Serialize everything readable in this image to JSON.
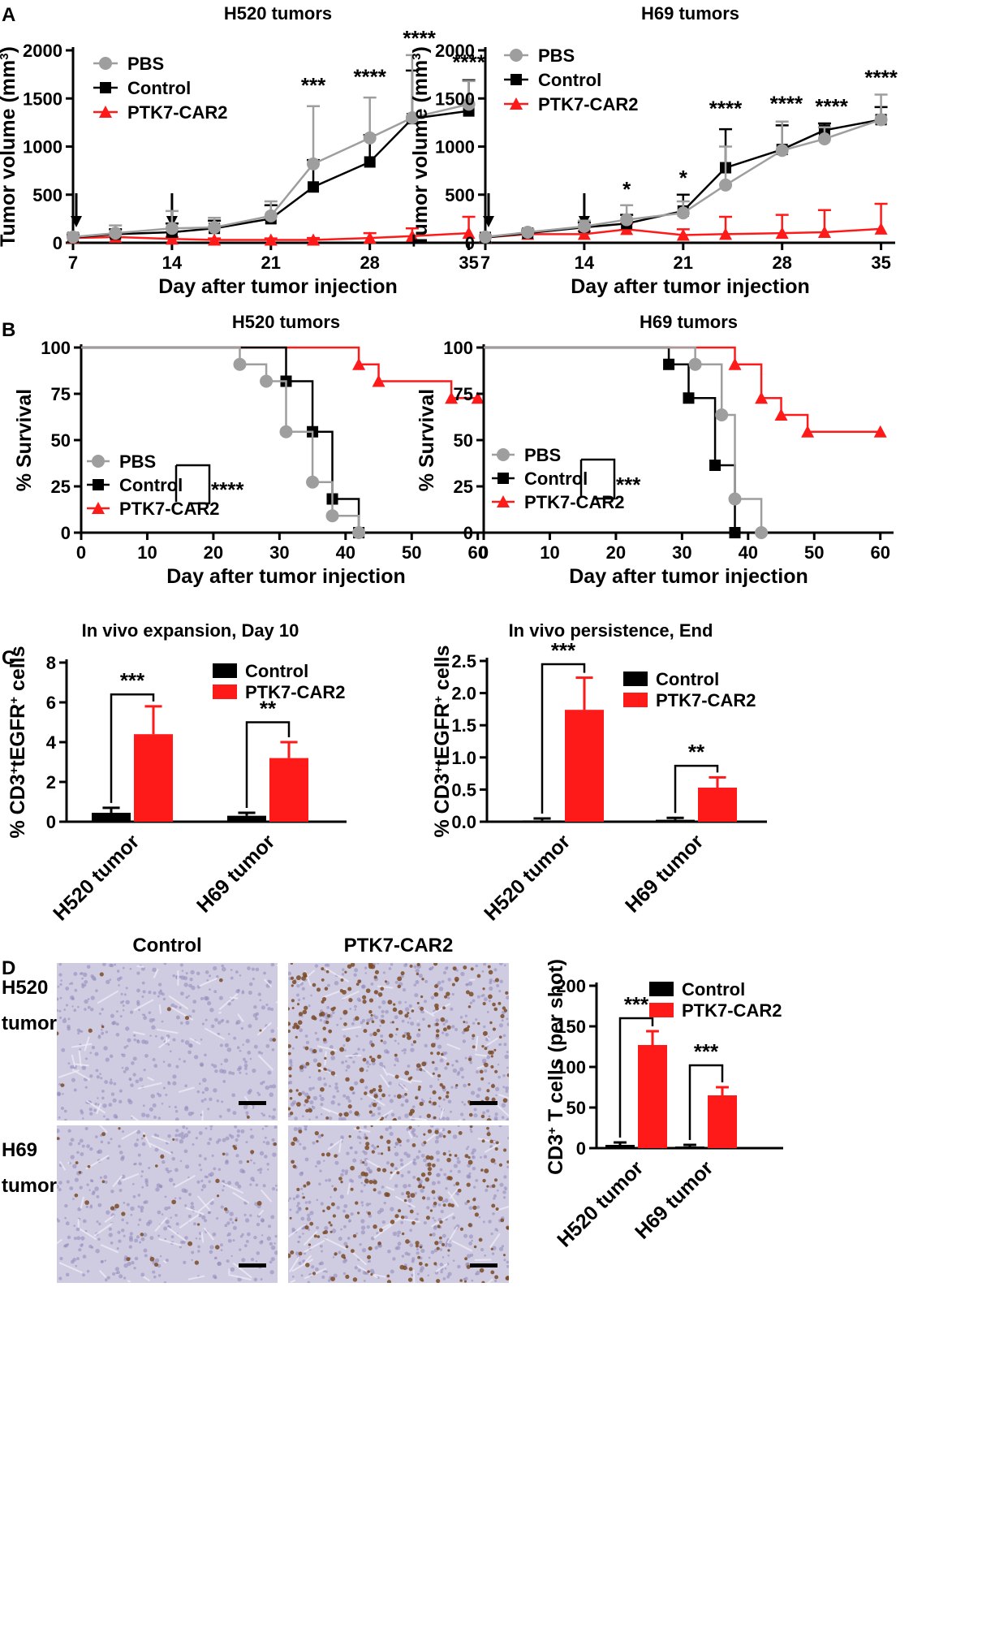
{
  "colors": {
    "pbs": "#9e9e9e",
    "control": "#000000",
    "car": "#ff1a1a",
    "ihc_bg": "#cfcce2",
    "ihc_tcell": "#7a4a26"
  },
  "panels": {
    "A": "A",
    "B": "B",
    "C": "C",
    "D": "D"
  },
  "chart_data": [
    {
      "id": "A1",
      "type": "line",
      "title": "H520 tumors",
      "xlabel": "Day after tumor injection",
      "ylabel": "Tumor volume (mm",
      "ylabel_sup": "3",
      "ylabel_end": ")",
      "xlim": [
        7,
        36
      ],
      "ylim": [
        0,
        2000
      ],
      "xticks": [
        7,
        14,
        21,
        28,
        35
      ],
      "yticks": [
        0,
        500,
        1000,
        1500,
        2000
      ],
      "legend": [
        "PBS",
        "Control",
        "PTK7-CAR2"
      ],
      "arrows_at_day": [
        7,
        14
      ],
      "series": [
        {
          "name": "PBS",
          "x": [
            7,
            10,
            14,
            17,
            21,
            24,
            28,
            31,
            35
          ],
          "values": [
            60,
            100,
            150,
            160,
            280,
            820,
            1090,
            1300,
            1440
          ],
          "err": [
            40,
            80,
            180,
            100,
            150,
            600,
            420,
            650,
            240
          ]
        },
        {
          "name": "Control",
          "x": [
            7,
            10,
            14,
            17,
            21,
            24,
            28,
            31,
            35
          ],
          "values": [
            55,
            90,
            110,
            150,
            250,
            580,
            840,
            1290,
            1370
          ],
          "err": [
            30,
            50,
            90,
            80,
            140,
            280,
            280,
            500,
            320
          ]
        },
        {
          "name": "PTK7-CAR2",
          "x": [
            7,
            10,
            14,
            17,
            21,
            24,
            28,
            31,
            35
          ],
          "values": [
            50,
            60,
            40,
            30,
            30,
            30,
            50,
            70,
            100
          ],
          "err": [
            20,
            30,
            20,
            15,
            15,
            20,
            50,
            80,
            170
          ]
        }
      ],
      "annotations": [
        {
          "x": 24,
          "y": 1560,
          "text": "***"
        },
        {
          "x": 28,
          "y": 1650,
          "text": "****"
        },
        {
          "x": 31.5,
          "y": 2050,
          "text": "****"
        },
        {
          "x": 35,
          "y": 1800,
          "text": "****"
        }
      ]
    },
    {
      "id": "A2",
      "type": "line",
      "title": "H69 tumors",
      "xlabel": "Day after tumor injection",
      "ylabel": "Tumor volume (mm",
      "ylabel_sup": "3",
      "ylabel_end": ")",
      "xlim": [
        7,
        36
      ],
      "ylim": [
        0,
        2000
      ],
      "xticks": [
        7,
        14,
        21,
        28,
        35
      ],
      "yticks": [
        0,
        500,
        1000,
        1500,
        2000
      ],
      "legend": [
        "PBS",
        "Control",
        "PTK7-CAR2"
      ],
      "arrows_at_day": [
        7,
        14
      ],
      "series": [
        {
          "name": "PBS",
          "x": [
            7,
            10,
            14,
            17,
            21,
            24,
            28,
            31,
            35
          ],
          "values": [
            60,
            110,
            170,
            240,
            310,
            600,
            960,
            1080,
            1280
          ],
          "err": [
            20,
            30,
            60,
            150,
            120,
            400,
            300,
            120,
            260
          ]
        },
        {
          "name": "Control",
          "x": [
            7,
            10,
            14,
            17,
            21,
            24,
            28,
            31,
            35
          ],
          "values": [
            55,
            100,
            160,
            200,
            330,
            780,
            970,
            1170,
            1280
          ],
          "err": [
            20,
            30,
            50,
            90,
            170,
            400,
            250,
            70,
            130
          ]
        },
        {
          "name": "PTK7-CAR2",
          "x": [
            7,
            10,
            14,
            17,
            21,
            24,
            28,
            31,
            35
          ],
          "values": [
            55,
            90,
            90,
            140,
            80,
            90,
            100,
            110,
            145
          ],
          "err": [
            20,
            20,
            30,
            60,
            60,
            180,
            190,
            230,
            260
          ]
        }
      ],
      "annotations": [
        {
          "x": 17,
          "y": 480,
          "text": "*"
        },
        {
          "x": 21,
          "y": 600,
          "text": "*"
        },
        {
          "x": 24,
          "y": 1320,
          "text": "****"
        },
        {
          "x": 28.3,
          "y": 1370,
          "text": "****"
        },
        {
          "x": 31.5,
          "y": 1340,
          "text": "****"
        },
        {
          "x": 35,
          "y": 1640,
          "text": "****"
        }
      ]
    },
    {
      "id": "B1",
      "type": "line",
      "title": "H520 tumors",
      "xlabel": "Day after tumor injection",
      "ylabel": "% Survival",
      "xlim": [
        0,
        62
      ],
      "ylim": [
        0,
        100
      ],
      "xticks": [
        0,
        10,
        20,
        30,
        40,
        50,
        60
      ],
      "yticks": [
        0,
        25,
        50,
        75,
        100
      ],
      "legend": [
        "PBS",
        "Control",
        "PTK7-CAR2"
      ],
      "significance": "****",
      "series": [
        {
          "name": "PBS",
          "x": [
            0,
            24,
            28,
            31,
            35,
            38,
            42
          ],
          "values": [
            100,
            90.9,
            81.8,
            54.5,
            27.3,
            9.1,
            0
          ],
          "marks": [
            [
              24,
              90.9
            ],
            [
              28,
              81.8
            ],
            [
              31,
              54.5
            ],
            [
              35,
              27.3
            ],
            [
              38,
              9.1
            ],
            [
              42,
              0
            ]
          ]
        },
        {
          "name": "Control",
          "x": [
            0,
            31,
            35,
            38,
            42
          ],
          "values": [
            100,
            81.8,
            54.5,
            18.2,
            0
          ],
          "marks": [
            [
              31,
              81.8
            ],
            [
              35,
              54.5
            ],
            [
              38,
              18.2
            ],
            [
              42,
              0
            ]
          ]
        },
        {
          "name": "PTK7-CAR2",
          "x": [
            0,
            42,
            45,
            56,
            60
          ],
          "values": [
            100,
            90.9,
            81.8,
            72.7,
            72.7
          ],
          "marks": [
            [
              42,
              90.9
            ],
            [
              45,
              81.8
            ],
            [
              56,
              72.7
            ],
            [
              60,
              72.7
            ]
          ]
        }
      ]
    },
    {
      "id": "B2",
      "type": "line",
      "title": "H69 tumors",
      "xlabel": "Day after tumor injection",
      "ylabel": "% Survival",
      "xlim": [
        0,
        62
      ],
      "ylim": [
        0,
        100
      ],
      "xticks": [
        0,
        10,
        20,
        30,
        40,
        50,
        60
      ],
      "yticks": [
        0,
        25,
        50,
        75,
        100
      ],
      "legend": [
        "PBS",
        "Control",
        "PTK7-CAR2"
      ],
      "significance": "***",
      "series": [
        {
          "name": "PBS",
          "x": [
            0,
            32,
            36,
            38,
            42
          ],
          "values": [
            100,
            90.9,
            63.6,
            18.2,
            0
          ],
          "marks": [
            [
              32,
              90.9
            ],
            [
              36,
              63.6
            ],
            [
              38,
              18.2
            ],
            [
              42,
              0
            ]
          ]
        },
        {
          "name": "Control",
          "x": [
            0,
            28,
            31,
            35,
            38
          ],
          "values": [
            100,
            90.9,
            72.7,
            36.4,
            0
          ],
          "marks": [
            [
              28,
              90.9
            ],
            [
              31,
              72.7
            ],
            [
              35,
              36.4
            ],
            [
              38,
              0
            ]
          ]
        },
        {
          "name": "PTK7-CAR2",
          "x": [
            0,
            38,
            42,
            45,
            49,
            60
          ],
          "values": [
            100,
            90.9,
            72.7,
            63.6,
            54.5,
            54.5
          ],
          "marks": [
            [
              38,
              90.9
            ],
            [
              42,
              72.7
            ],
            [
              45,
              63.6
            ],
            [
              49,
              54.5
            ],
            [
              60,
              54.5
            ]
          ]
        }
      ]
    },
    {
      "id": "C1",
      "type": "bar",
      "title": "In vivo expansion, Day 10",
      "ylabel_parts": [
        "% CD3",
        "+",
        "tEGFR",
        "+",
        " cells"
      ],
      "categories": [
        "H520 tumor",
        "H69 tumor"
      ],
      "ylim": [
        0,
        8
      ],
      "yticks": [
        0,
        2,
        4,
        6,
        8
      ],
      "yticklabels": [
        "0",
        "2",
        "4",
        "6",
        "8"
      ],
      "legend": [
        "Control",
        "PTK7-CAR2"
      ],
      "series": [
        {
          "name": "Control",
          "values": [
            0.45,
            0.3
          ],
          "err": [
            0.25,
            0.15
          ]
        },
        {
          "name": "PTK7-CAR2",
          "values": [
            4.4,
            3.2
          ],
          "err": [
            1.4,
            0.8
          ]
        }
      ],
      "significance": [
        "***",
        "**"
      ],
      "sig_y": [
        6.4,
        5.0
      ]
    },
    {
      "id": "C2",
      "type": "bar",
      "title": "In vivo persistence, End",
      "ylabel_parts": [
        "% CD3",
        "+",
        "tEGFR",
        "+",
        " cells"
      ],
      "categories": [
        "H520 tumor",
        "H69 tumor"
      ],
      "ylim": [
        0,
        2.5
      ],
      "yticks": [
        0,
        0.5,
        1.0,
        1.5,
        2.0,
        2.5
      ],
      "yticklabels": [
        "0.0",
        "0.5",
        "1.0",
        "1.5",
        "2.0",
        "2.5"
      ],
      "legend": [
        "Control",
        "PTK7-CAR2"
      ],
      "series": [
        {
          "name": "Control",
          "values": [
            0.02,
            0.03
          ],
          "err": [
            0.03,
            0.03
          ]
        },
        {
          "name": "PTK7-CAR2",
          "values": [
            1.74,
            0.53
          ],
          "err": [
            0.5,
            0.16
          ]
        }
      ],
      "significance": [
        "***",
        "**"
      ],
      "sig_y": [
        2.45,
        0.87
      ]
    },
    {
      "id": "D",
      "type": "bar",
      "title": "",
      "ylabel_parts": [
        "CD3",
        "+",
        " T cells (per shot)"
      ],
      "categories": [
        "H520 tumor",
        "H69 tumor"
      ],
      "ylim": [
        0,
        200
      ],
      "yticks": [
        0,
        50,
        100,
        150,
        200
      ],
      "yticklabels": [
        "0",
        "50",
        "100",
        "150",
        "200"
      ],
      "legend": [
        "Control",
        "PTK7-CAR2"
      ],
      "series": [
        {
          "name": "Control",
          "values": [
            4,
            2
          ],
          "err": [
            3,
            2
          ]
        },
        {
          "name": "PTK7-CAR2",
          "values": [
            127,
            65
          ],
          "err": [
            17,
            10
          ]
        }
      ],
      "significance": [
        "***",
        "***"
      ],
      "sig_y": [
        160,
        102
      ]
    }
  ],
  "ihc": {
    "col_labels": [
      "Control",
      "PTK7-CAR2"
    ],
    "rows": [
      {
        "line1": "H520",
        "line2": "tumor"
      },
      {
        "line1": "H69",
        "line2": "tumor"
      }
    ],
    "tcell_density": [
      [
        0.02,
        0.45
      ],
      [
        0.06,
        0.35
      ]
    ]
  }
}
